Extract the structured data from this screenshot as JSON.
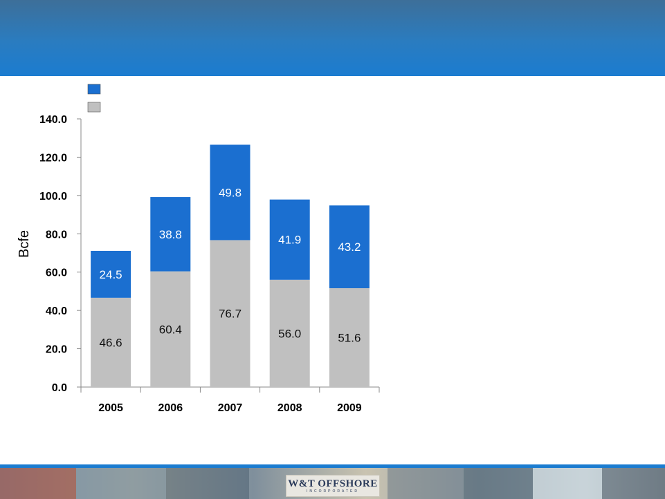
{
  "colors": {
    "header": "#2a7cc0",
    "production_series": "#1b6fd0",
    "reserves_series": "#c0c0c0",
    "footer_rule": "#1b7cd0"
  },
  "footer": {
    "logo_text": "W&T OFFSHORE",
    "logo_subtext": "INCORPORATED"
  },
  "chart_data": {
    "type": "bar",
    "stacked": true,
    "categories": [
      "2005",
      "2006",
      "2007",
      "2008",
      "2009"
    ],
    "series": [
      {
        "color": "#c0c0c0",
        "values": [
          46.6,
          60.4,
          76.7,
          56.0,
          51.6
        ],
        "labels": [
          "46.6",
          "60.4",
          "76.7",
          "56.0",
          "51.6"
        ]
      },
      {
        "color": "#1b6fd0",
        "values": [
          24.5,
          38.8,
          49.8,
          41.9,
          43.2
        ],
        "labels": [
          "24.5",
          "38.8",
          "49.8",
          "41.9",
          "43.2"
        ]
      }
    ],
    "ylabel": "Bcfe",
    "xlabel": "",
    "ylim": [
      0,
      140
    ],
    "yticks": [
      "0.0",
      "20.0",
      "40.0",
      "60.0",
      "80.0",
      "100.0",
      "120.0",
      "140.0"
    ],
    "grid": false,
    "legend_position": "top-left"
  }
}
